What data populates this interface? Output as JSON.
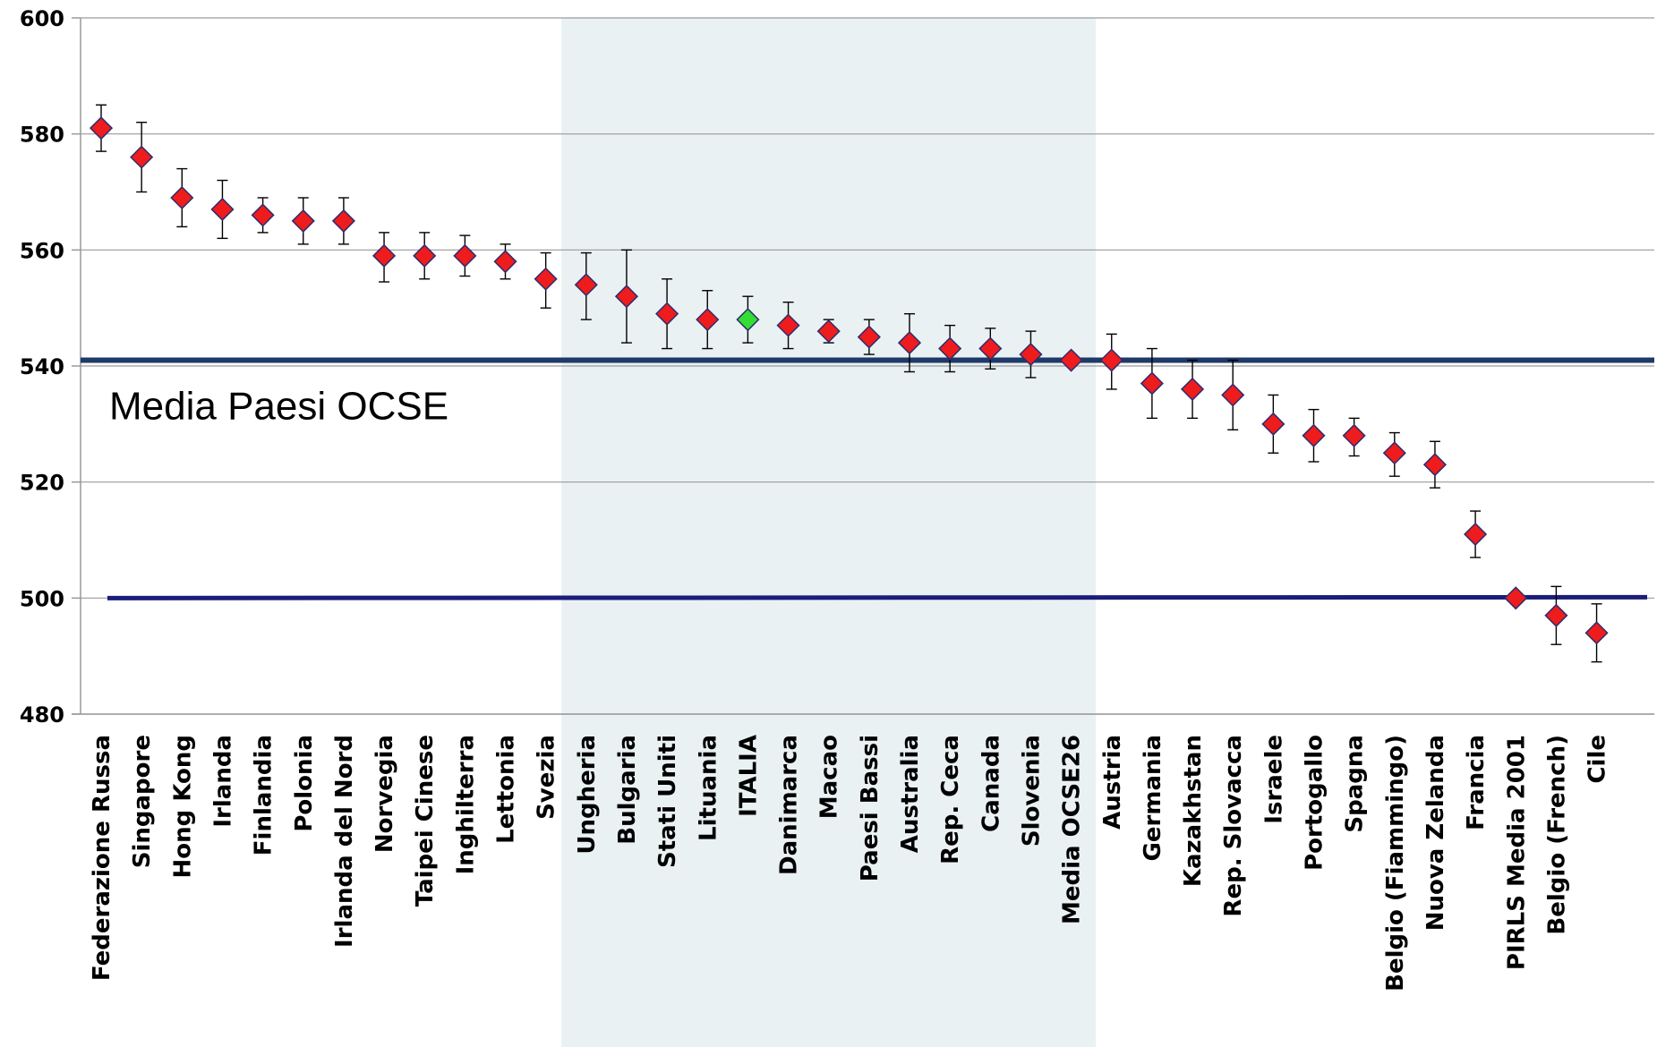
{
  "chart_data": {
    "type": "scatter",
    "ylim": [
      480,
      600
    ],
    "yticks": [
      480,
      500,
      520,
      540,
      560,
      580,
      600
    ],
    "grid": true,
    "categories": [
      "Federazione Russa",
      "Singapore",
      "Hong Kong",
      "Irlanda",
      "Finlandia",
      "Polonia",
      "Irlanda del Nord",
      "Norvegia",
      "Taipei Cinese",
      "Inghilterra",
      "Lettonia",
      "Svezia",
      "Ungheria",
      "Bulgaria",
      "Stati Uniti",
      "Lituania",
      "ITALIA",
      "Danimarca",
      "Macao",
      "Paesi Bassi",
      "Australia",
      "Rep. Ceca",
      "Canada",
      "Slovenia",
      "Media OCSE26",
      "Austria",
      "Germania",
      "Kazakhstan",
      "Rep. Slovacca",
      "Israele",
      "Portogallo",
      "Spagna",
      "Belgio (Fiammingo)",
      "Nuova Zelanda",
      "Francia",
      "PIRLS Media 2001",
      "Belgio (French)",
      "Cile"
    ],
    "values": [
      581,
      576,
      569,
      567,
      566,
      565,
      565,
      559,
      559,
      559,
      558,
      555,
      554,
      552,
      549,
      548,
      548,
      547,
      546,
      545,
      544,
      543,
      543,
      542,
      541,
      541,
      537,
      536,
      535,
      530,
      528,
      528,
      525,
      523,
      511,
      500,
      497,
      494
    ],
    "error_low": [
      577,
      570,
      564,
      562,
      563,
      561,
      561,
      554.5,
      555,
      555.5,
      555,
      550,
      548,
      544,
      543,
      543,
      544,
      543,
      544,
      542,
      539,
      539,
      539.5,
      538,
      541,
      536,
      531,
      531,
      529,
      525,
      523.5,
      524.5,
      521,
      519,
      507,
      500,
      492,
      489
    ],
    "error_high": [
      585,
      582,
      574,
      572,
      569,
      569,
      569,
      563,
      563,
      562.5,
      561,
      559.5,
      559.5,
      560,
      555,
      553,
      552,
      551,
      548,
      548,
      549,
      547,
      546.5,
      546,
      541,
      545.5,
      543,
      541,
      541,
      535,
      532.5,
      531,
      528.5,
      527,
      515,
      500,
      502,
      499
    ],
    "highlight_category": "ITALIA",
    "highlight_band": [
      "Ungheria",
      "Media OCSE26"
    ],
    "reference_lines": [
      {
        "value": 541,
        "label": "Media Paesi OCSE",
        "color": "#1f3a68"
      },
      {
        "value": 500,
        "label": "",
        "color": "#1c1c7a"
      }
    ],
    "colors": {
      "marker": "#ee1c1c",
      "marker_highlight": "#33dd33",
      "marker_stroke": "#2c2c6e",
      "band": "#eaf1f3"
    }
  }
}
